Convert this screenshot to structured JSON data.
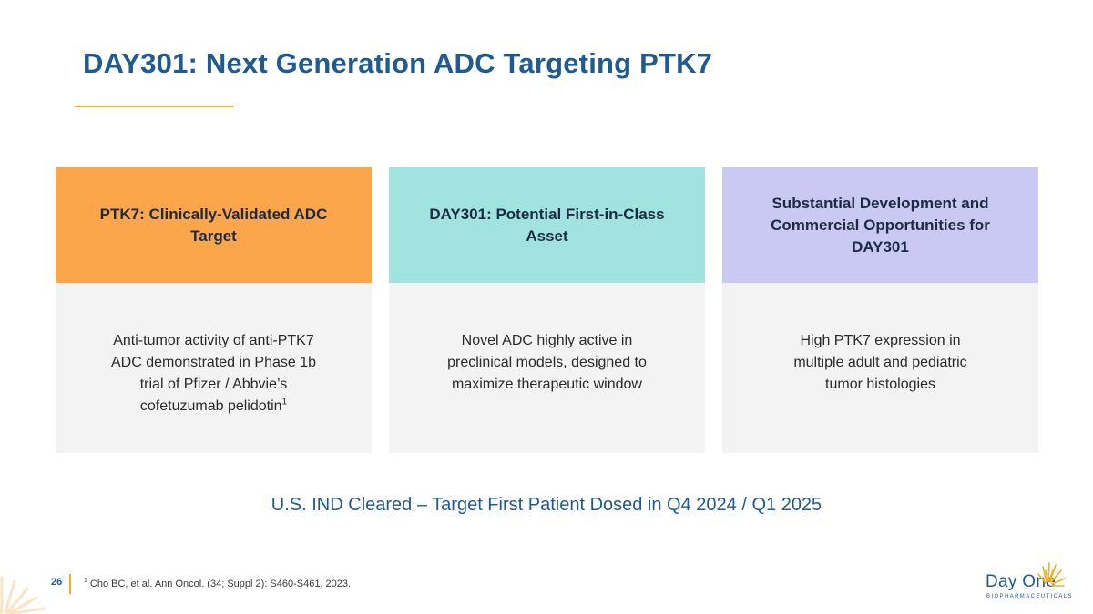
{
  "slide": {
    "title": "DAY301: Next Generation ADC Targeting PTK7",
    "page_number": "26",
    "status_line": "U.S. IND Cleared – Target First Patient Dosed in Q4 2024 / Q1 2025"
  },
  "cards": [
    {
      "heading": "PTK7: Clinically-Validated ADC Target",
      "body": "Anti-tumor activity of anti-PTK7 ADC demonstrated in Phase 1b trial of Pfizer / Abbvie’s cofetuzumab pelidotin",
      "body_sup": "1",
      "color": "#fba64a"
    },
    {
      "heading": "DAY301: Potential First-in-Class Asset",
      "body": "Novel ADC highly active in preclinical models, designed to maximize therapeutic window",
      "color": "#a0e3df"
    },
    {
      "heading": "Substantial Development and Commercial Opportunities for DAY301",
      "body": "High PTK7 expression in multiple adult and pediatric tumor histologies",
      "color": "#c9c9f4"
    }
  ],
  "footnote": {
    "marker": "1",
    "text": "Cho BC, et al. Ann Oncol. (34; Suppl 2): S460-S461, 2023."
  },
  "logo": {
    "name": "Day One",
    "tagline": "BIOPHARMACEUTICALS"
  },
  "colors": {
    "brand_blue": "#1f5a93",
    "accent_gold": "#f2b01e"
  }
}
